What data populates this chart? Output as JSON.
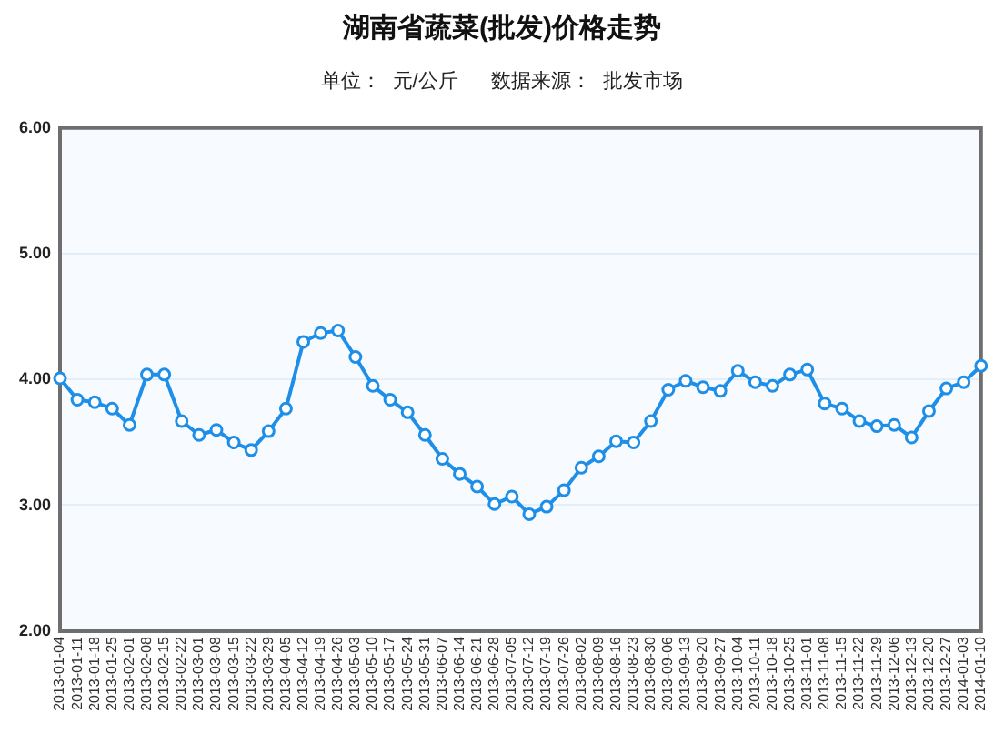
{
  "chart_data": {
    "type": "line",
    "title": "湖南省蔬菜(批发)价格走势",
    "subtitle": "单位：  元/公斤      数据来源：  批发市场",
    "categories": [
      "2013-01-04",
      "2013-01-11",
      "2013-01-18",
      "2013-01-25",
      "2013-02-01",
      "2013-02-08",
      "2013-02-15",
      "2013-02-22",
      "2013-03-01",
      "2013-03-08",
      "2013-03-15",
      "2013-03-22",
      "2013-03-29",
      "2013-04-05",
      "2013-04-12",
      "2013-04-19",
      "2013-04-26",
      "2013-05-03",
      "2013-05-10",
      "2013-05-17",
      "2013-05-24",
      "2013-05-31",
      "2013-06-07",
      "2013-06-14",
      "2013-06-21",
      "2013-06-28",
      "2013-07-05",
      "2013-07-12",
      "2013-07-19",
      "2013-07-26",
      "2013-08-02",
      "2013-08-09",
      "2013-08-16",
      "2013-08-23",
      "2013-08-30",
      "2013-09-06",
      "2013-09-13",
      "2013-09-20",
      "2013-09-27",
      "2013-10-04",
      "2013-10-11",
      "2013-10-18",
      "2013-10-25",
      "2013-11-01",
      "2013-11-08",
      "2013-11-15",
      "2013-11-22",
      "2013-11-29",
      "2013-12-06",
      "2013-12-13",
      "2013-12-20",
      "2013-12-27",
      "2014-01-03",
      "2014-01-10"
    ],
    "series": [
      {
        "color": "#1e8fe8",
        "values": [
          4.01,
          3.84,
          3.82,
          3.77,
          3.64,
          4.04,
          4.04,
          3.67,
          3.56,
          3.6,
          3.5,
          3.44,
          3.59,
          3.77,
          4.3,
          4.37,
          4.39,
          4.18,
          3.95,
          3.84,
          3.74,
          3.56,
          3.37,
          3.25,
          3.15,
          3.01,
          3.07,
          2.93,
          2.99,
          3.12,
          3.3,
          3.39,
          3.51,
          3.5,
          3.67,
          3.92,
          3.99,
          3.94,
          3.91,
          4.07,
          3.98,
          3.95,
          4.04,
          4.08,
          3.81,
          3.77,
          3.67,
          3.63,
          3.64,
          3.54,
          3.75,
          3.93,
          3.98,
          4.11
        ]
      }
    ],
    "ylim": [
      2,
      6
    ],
    "yticks": [
      {
        "value": 2,
        "label": "2.00"
      },
      {
        "value": 3,
        "label": "3.00"
      },
      {
        "value": 4,
        "label": "4.00"
      },
      {
        "value": 5,
        "label": "5.00"
      },
      {
        "value": 6,
        "label": "6.00"
      }
    ],
    "grid": "y",
    "marker": "circle",
    "line_style": "solid"
  }
}
